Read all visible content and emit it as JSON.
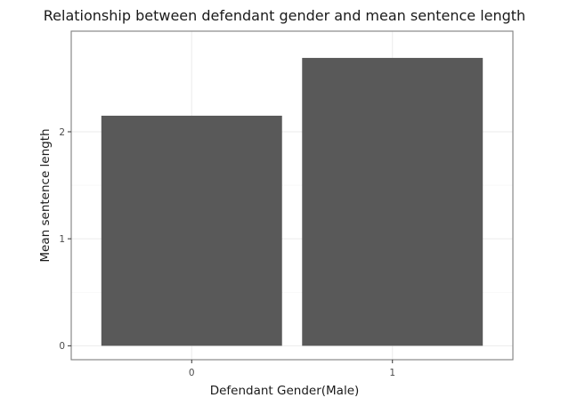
{
  "chart_data": {
    "type": "bar",
    "title": "Relationship between defendant gender and mean sentence length",
    "xlabel": "Defendant Gender(Male)",
    "ylabel": "Mean sentence length",
    "categories": [
      "0",
      "1"
    ],
    "values": [
      2.15,
      2.69
    ],
    "ylim": [
      -0.13,
      2.94
    ],
    "yticks": [
      0,
      1,
      2
    ],
    "bar_color": "#595959",
    "grid": true,
    "legend": "none"
  }
}
